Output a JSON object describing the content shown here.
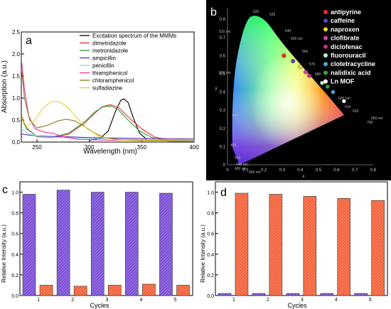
{
  "panels": {
    "a": "a",
    "b": "b",
    "c": "c",
    "d": "d"
  },
  "colors": {
    "purple_bar": "#7b4fd6",
    "orange_bar": "#f4623a",
    "cie_background": "#000000"
  },
  "chart_data": [
    {
      "type": "line",
      "panel": "a",
      "xlabel": "Wavelength (nm)",
      "ylabel": "Absorption (a.u.)",
      "xlim": [
        235,
        400
      ],
      "ylim": [
        0,
        2.5
      ],
      "x_ticks": [
        "250",
        "300",
        "350",
        "400"
      ],
      "y_ticks": [
        "0.0",
        "0.5",
        "1.0",
        "1.5",
        "2.0",
        "2.5"
      ],
      "series": [
        {
          "name": "Excitation spectrum of the MMMs",
          "color": "#000000",
          "points": [
            [
              300,
              0.04
            ],
            [
              310,
              0.08
            ],
            [
              318,
              0.25
            ],
            [
              325,
              0.7
            ],
            [
              330,
              0.95
            ],
            [
              333,
              0.98
            ],
            [
              337,
              0.9
            ],
            [
              342,
              0.55
            ],
            [
              348,
              0.2
            ],
            [
              355,
              0.06
            ],
            [
              365,
              0.03
            ],
            [
              380,
              0.02
            ],
            [
              400,
              0.02
            ]
          ]
        },
        {
          "name": "dimetridazole",
          "color": "#e8312a",
          "points": [
            [
              235,
              0.6
            ],
            [
              240,
              0.32
            ],
            [
              250,
              0.12
            ],
            [
              265,
              0.1
            ],
            [
              280,
              0.18
            ],
            [
              295,
              0.42
            ],
            [
              305,
              0.65
            ],
            [
              312,
              0.8
            ],
            [
              320,
              0.85
            ],
            [
              328,
              0.78
            ],
            [
              338,
              0.55
            ],
            [
              350,
              0.3
            ],
            [
              362,
              0.12
            ],
            [
              375,
              0.05
            ],
            [
              400,
              0.03
            ]
          ]
        },
        {
          "name": "metronidazole",
          "color": "#2e9e3a",
          "points": [
            [
              235,
              0.55
            ],
            [
              240,
              0.3
            ],
            [
              250,
              0.13
            ],
            [
              265,
              0.12
            ],
            [
              280,
              0.2
            ],
            [
              295,
              0.45
            ],
            [
              305,
              0.68
            ],
            [
              313,
              0.8
            ],
            [
              320,
              0.82
            ],
            [
              327,
              0.75
            ],
            [
              337,
              0.5
            ],
            [
              348,
              0.25
            ],
            [
              360,
              0.1
            ],
            [
              375,
              0.04
            ],
            [
              400,
              0.03
            ]
          ]
        },
        {
          "name": "ampicillin",
          "color": "#6a2bb0",
          "points": [
            [
              235,
              0.18
            ],
            [
              245,
              0.15
            ],
            [
              260,
              0.13
            ],
            [
              280,
              0.12
            ],
            [
              300,
              0.1
            ],
            [
              330,
              0.09
            ],
            [
              360,
              0.08
            ],
            [
              400,
              0.07
            ]
          ]
        },
        {
          "name": "penicillin",
          "color": "#8fd6f0",
          "points": [
            [
              235,
              0.3
            ],
            [
              242,
              0.18
            ],
            [
              255,
              0.12
            ],
            [
              275,
              0.1
            ],
            [
              300,
              0.08
            ],
            [
              340,
              0.06
            ],
            [
              400,
              0.05
            ]
          ]
        },
        {
          "name": "thiamphenicol",
          "color": "#e23aa3",
          "points": [
            [
              235,
              1.9
            ],
            [
              238,
              1.2
            ],
            [
              242,
              0.6
            ],
            [
              248,
              0.3
            ],
            [
              258,
              0.22
            ],
            [
              265,
              0.2
            ],
            [
              275,
              0.12
            ],
            [
              290,
              0.06
            ],
            [
              320,
              0.04
            ],
            [
              400,
              0.03
            ]
          ]
        },
        {
          "name": "chloramphenicol",
          "color": "#8c7a1e",
          "points": [
            [
              235,
              1.7
            ],
            [
              238,
              1.0
            ],
            [
              243,
              0.5
            ],
            [
              250,
              0.32
            ],
            [
              260,
              0.38
            ],
            [
              270,
              0.48
            ],
            [
              278,
              0.52
            ],
            [
              286,
              0.48
            ],
            [
              295,
              0.36
            ],
            [
              305,
              0.2
            ],
            [
              315,
              0.1
            ],
            [
              330,
              0.05
            ],
            [
              400,
              0.03
            ]
          ]
        },
        {
          "name": "sulfadiazine",
          "color": "#e8cc2a",
          "points": [
            [
              235,
              0.55
            ],
            [
              240,
              0.35
            ],
            [
              248,
              0.5
            ],
            [
              256,
              0.78
            ],
            [
              264,
              0.92
            ],
            [
              270,
              0.93
            ],
            [
              278,
              0.82
            ],
            [
              288,
              0.55
            ],
            [
              298,
              0.3
            ],
            [
              310,
              0.12
            ],
            [
              325,
              0.05
            ],
            [
              345,
              0.03
            ],
            [
              400,
              0.02
            ]
          ]
        }
      ]
    },
    {
      "type": "scatter",
      "panel": "b",
      "xlabel": "x",
      "ylabel": "y",
      "x_ticks": [
        "0",
        "0.1",
        "0.2",
        "0.3",
        "0.4",
        "0.5",
        "0.6",
        "0.7",
        "0.8"
      ],
      "y_ticks": [
        "0",
        "0.1",
        "0.2",
        "0.3",
        "0.4",
        "0.5",
        "0.6",
        "0.7",
        "0.8"
      ],
      "wavelength_labels": [
        "520",
        "530",
        "540",
        "550 nm",
        "560",
        "570",
        "580",
        "590",
        "600 nm",
        "610",
        "620",
        "650 nm",
        "700",
        "510 nm",
        "500 nm",
        "490",
        "480",
        "470",
        "460 nm",
        "450 nm",
        "400 nm"
      ],
      "legend": [
        {
          "name": "antipyrine",
          "color": "#f02a2a",
          "x": 0.31,
          "y": 0.6
        },
        {
          "name": "caffeine",
          "color": "#5b3fd0",
          "x": 0.36,
          "y": 0.57
        },
        {
          "name": "naproxen",
          "color": "#f0d72a",
          "x": 0.4,
          "y": 0.54
        },
        {
          "name": "clofibrate",
          "color": "#d63fb0",
          "x": 0.43,
          "y": 0.51
        },
        {
          "name": "diclofenac",
          "color": "#c0308a",
          "x": 0.45,
          "y": 0.49
        },
        {
          "name": "fluorouracil",
          "color": "#b8eed8",
          "x": 0.52,
          "y": 0.45
        },
        {
          "name": "clotetracycline",
          "color": "#4aa8e0",
          "x": 0.58,
          "y": 0.4
        },
        {
          "name": "nalidixic acid",
          "color": "#2fa84a",
          "x": 0.55,
          "y": 0.43
        },
        {
          "name": "Ln MOF",
          "color": "#ffffff",
          "x": 0.64,
          "y": 0.35
        }
      ]
    },
    {
      "type": "bar",
      "panel": "c",
      "xlabel": "Cycles",
      "ylabel": "Relative Intensity (a.u.)",
      "ylim": [
        0,
        1.1
      ],
      "y_ticks": [
        "0.0",
        "0.2",
        "0.4",
        "0.6",
        "0.8",
        "1.0"
      ],
      "categories": [
        "1",
        "2",
        "3",
        "4",
        "5"
      ],
      "series": [
        {
          "color": "#7b4fd6",
          "values": [
            0.98,
            1.02,
            1.0,
            1.0,
            0.99
          ]
        },
        {
          "color": "#f4623a",
          "values": [
            0.1,
            0.09,
            0.1,
            0.11,
            0.1
          ]
        }
      ]
    },
    {
      "type": "bar",
      "panel": "d",
      "xlabel": "Cycles",
      "ylabel": "Relative Intensity (a.u.)",
      "ylim": [
        0,
        1.1
      ],
      "y_ticks": [
        "0.0",
        "0.2",
        "0.4",
        "0.6",
        "0.8",
        "1.0"
      ],
      "categories": [
        "1",
        "2",
        "3",
        "4",
        "5"
      ],
      "series": [
        {
          "color": "#7b4fd6",
          "values": [
            0.02,
            0.02,
            0.02,
            0.02,
            0.02
          ]
        },
        {
          "color": "#f4623a",
          "values": [
            0.99,
            0.98,
            0.96,
            0.94,
            0.92
          ]
        }
      ]
    }
  ]
}
